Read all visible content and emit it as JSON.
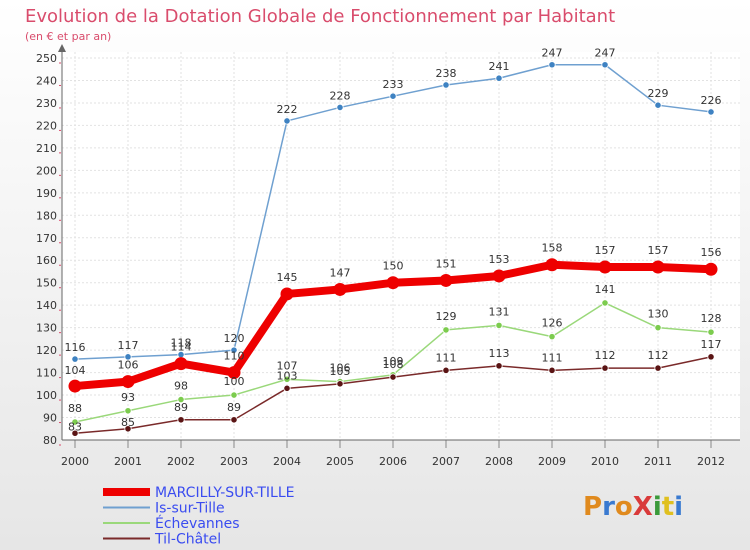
{
  "chart_data": {
    "type": "line",
    "title": "Evolution de la Dotation Globale de Fonctionnement par Habitant",
    "subtitle": "(en € et par an)",
    "xlabel": "",
    "ylabel": "",
    "x": [
      "2000",
      "2001",
      "2002",
      "2003",
      "2004",
      "2005",
      "2006",
      "2007",
      "2008",
      "2009",
      "2010",
      "2011",
      "2012"
    ],
    "ylim": [
      80,
      250
    ],
    "yticks": [
      80,
      90,
      100,
      110,
      120,
      130,
      140,
      150,
      160,
      170,
      180,
      190,
      200,
      210,
      220,
      230,
      240,
      250
    ],
    "grid": true,
    "legend": "bottom-left",
    "series": [
      {
        "name": "Is-sur-Tille",
        "color": "#6fa0d0",
        "marker": "#3e82c2",
        "width": 1.5,
        "values": [
          116,
          117,
          118,
          120,
          222,
          228,
          233,
          238,
          241,
          247,
          247,
          229,
          226
        ]
      },
      {
        "name": "Échevannes",
        "color": "#9ad87a",
        "marker": "#7ccc4e",
        "width": 1.5,
        "values": [
          88,
          93,
          98,
          100,
          107,
          106,
          109,
          129,
          131,
          126,
          141,
          130,
          128
        ]
      },
      {
        "name": "Til-Châtel",
        "color": "#7a2a2a",
        "marker": "#5a1414",
        "width": 1.5,
        "values": [
          83,
          85,
          89,
          89,
          103,
          105,
          108,
          111,
          113,
          111,
          112,
          112,
          117
        ]
      },
      {
        "name": "MARCILLY-SUR-TILLE",
        "color": "#ee0000",
        "marker": "#ee0000",
        "width": 8,
        "values": [
          104,
          106,
          114,
          110,
          145,
          147,
          150,
          151,
          153,
          158,
          157,
          157,
          156
        ]
      }
    ],
    "legend_entries": [
      {
        "name": "MARCILLY-SUR-TILLE",
        "color": "#ee0000",
        "width": 8
      },
      {
        "name": "Is-sur-Tille",
        "color": "#6fa0d0",
        "width": 2
      },
      {
        "name": "Échevannes",
        "color": "#9ad87a",
        "width": 2
      },
      {
        "name": "Til-Châtel",
        "color": "#7a2a2a",
        "width": 2
      }
    ],
    "data_labels": {
      "Is-sur-Tille": [
        "116",
        "117",
        "118",
        "120",
        "222",
        "228",
        "233",
        "238",
        "241",
        "247",
        "247",
        "229",
        "226"
      ],
      "MARCILLY-SUR-TILLE": [
        "104",
        "106",
        "114",
        "110",
        "145",
        "147",
        "150",
        "151",
        "153",
        "158",
        "157",
        "157",
        "156"
      ],
      "Échevannes": [
        "88",
        "93",
        "98",
        "100",
        "107",
        "106",
        "109",
        "129",
        "131",
        "126",
        "141",
        "130",
        "128"
      ],
      "Til-Châtel": [
        "83",
        "85",
        "89",
        "89",
        "103",
        "105",
        "108",
        "111",
        "113",
        "111",
        "112",
        "112",
        "117"
      ]
    }
  },
  "brand": {
    "logo_text": "ProXiti"
  }
}
